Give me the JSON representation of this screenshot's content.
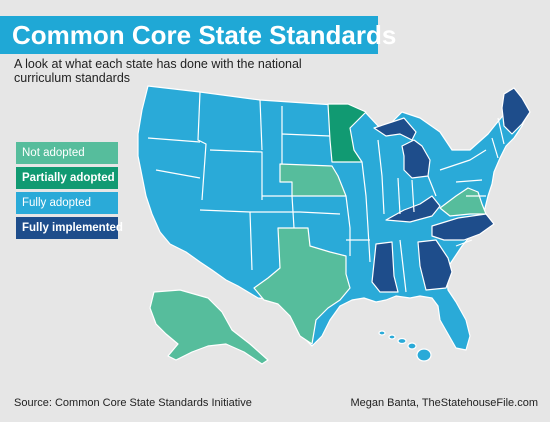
{
  "title": "Common Core State Standards",
  "subtitle": "A look at what each state has done with the national curriculum standards",
  "legend": [
    {
      "label": "Not adopted",
      "color": "#56bd9c"
    },
    {
      "label": "Partially adopted",
      "color": "#119a72"
    },
    {
      "label": "Fully adopted",
      "color": "#2aaad8"
    },
    {
      "label": "Fully implemented",
      "color": "#1e4d8b"
    }
  ],
  "colors": {
    "title_bg": "#1fa8d6",
    "not_adopted": "#56bd9c",
    "partially_adopted": "#119a72",
    "fully_adopted": "#2aaad8",
    "fully_implemented": "#1e4d8b"
  },
  "footer": {
    "source": "Source: Common Core State Standards Initiative",
    "credit": "Megan Banta, TheStatehouseFile.com"
  }
}
